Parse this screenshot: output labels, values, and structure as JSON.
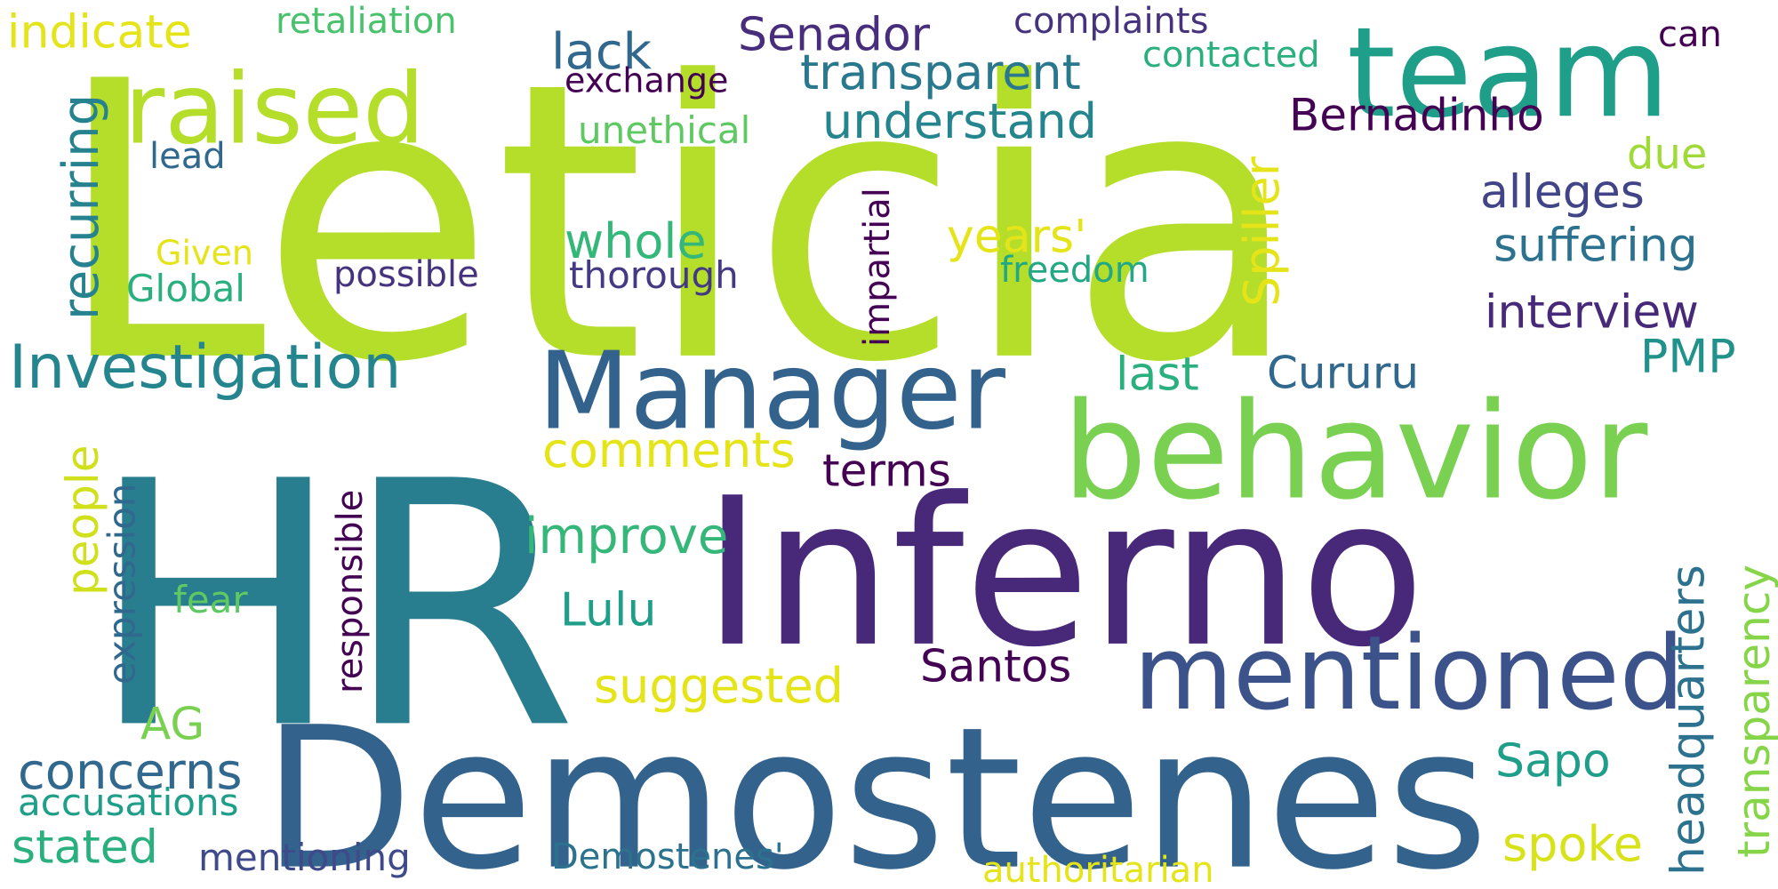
{
  "words": [
    {
      "text": "Leticia",
      "color": "#b5de2b"
    },
    {
      "text": "HR",
      "color": "#287d8e"
    },
    {
      "text": "Inferno",
      "color": "#482979"
    },
    {
      "text": "Demostenes",
      "color": "#33638d"
    },
    {
      "text": "team",
      "color": "#1f9e89"
    },
    {
      "text": "behavior",
      "color": "#7ad151"
    },
    {
      "text": "Manager",
      "color": "#33638d"
    },
    {
      "text": "raised",
      "color": "#b5de2b"
    },
    {
      "text": "mentioned",
      "color": "#3b528b"
    },
    {
      "text": "Investigation",
      "color": "#25858e"
    },
    {
      "text": "Senador",
      "color": "#472d7b"
    },
    {
      "text": "transparent",
      "color": "#2a788e"
    },
    {
      "text": "understand",
      "color": "#25858e"
    },
    {
      "text": "Bernadinho",
      "color": "#440154"
    },
    {
      "text": "lack",
      "color": "#31688e"
    },
    {
      "text": "indicate",
      "color": "#e5e419"
    },
    {
      "text": "retaliation",
      "color": "#4ac16d"
    },
    {
      "text": "complaints",
      "color": "#46337e"
    },
    {
      "text": "contacted",
      "color": "#2ab07f"
    },
    {
      "text": "can",
      "color": "#440154"
    },
    {
      "text": "exchange",
      "color": "#440154"
    },
    {
      "text": "unethical",
      "color": "#5ec962"
    },
    {
      "text": "lead",
      "color": "#31688e"
    },
    {
      "text": "recurring",
      "color": "#26828e"
    },
    {
      "text": "Spiller",
      "color": "#e5e419"
    },
    {
      "text": "impartial",
      "color": "#440154"
    },
    {
      "text": "due",
      "color": "#a0da39"
    },
    {
      "text": "alleges",
      "color": "#414487"
    },
    {
      "text": "suffering",
      "color": "#2c728e"
    },
    {
      "text": "whole",
      "color": "#35b779"
    },
    {
      "text": "years'",
      "color": "#e5e419"
    },
    {
      "text": "Given",
      "color": "#e5e419"
    },
    {
      "text": "Global",
      "color": "#2ab07f"
    },
    {
      "text": "possible",
      "color": "#46337e"
    },
    {
      "text": "thorough",
      "color": "#443983"
    },
    {
      "text": "freedom",
      "color": "#22a884"
    },
    {
      "text": "interview",
      "color": "#482979"
    },
    {
      "text": "PMP",
      "color": "#21918c"
    },
    {
      "text": "last",
      "color": "#2ab07f"
    },
    {
      "text": "Cururu",
      "color": "#31688e"
    },
    {
      "text": "comments",
      "color": "#e5e419"
    },
    {
      "text": "terms",
      "color": "#440154"
    },
    {
      "text": "improve",
      "color": "#35b779"
    },
    {
      "text": "people",
      "color": "#d0e11c"
    },
    {
      "text": "expression",
      "color": "#31688e"
    },
    {
      "text": "responsible",
      "color": "#440154"
    },
    {
      "text": "fear",
      "color": "#5ec962"
    },
    {
      "text": "Lulu",
      "color": "#1f9e89"
    },
    {
      "text": "headquarters",
      "color": "#2c728e"
    },
    {
      "text": "transparency",
      "color": "#86d549"
    },
    {
      "text": "Santos",
      "color": "#440154"
    },
    {
      "text": "suggested",
      "color": "#e5e419"
    },
    {
      "text": "AG",
      "color": "#7ad151"
    },
    {
      "text": "concerns",
      "color": "#31688e"
    },
    {
      "text": "Sapo",
      "color": "#1f9e89"
    },
    {
      "text": "accusations",
      "color": "#1f9e89"
    },
    {
      "text": "stated",
      "color": "#2ab07f"
    },
    {
      "text": "spoke",
      "color": "#d8e219"
    },
    {
      "text": "mentioning",
      "color": "#3e4a89"
    },
    {
      "text": "Demostenes'",
      "color": "#2c728e"
    },
    {
      "text": "authoritarian",
      "color": "#e5e419"
    }
  ]
}
